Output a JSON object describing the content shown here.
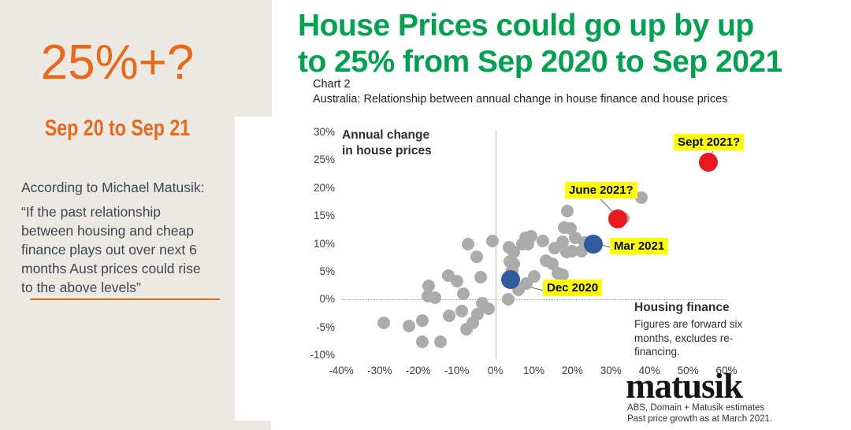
{
  "colors": {
    "accent_orange": "#E8691B",
    "title_green": "#00A24F",
    "panel_beige": "#ECE9E3",
    "highlight_yellow": "#FFFF00",
    "dot_gray": "#ABABAB",
    "dot_blue": "#2E5C9E",
    "dot_red": "#E8191D"
  },
  "left_panel": {
    "headline": "25%+?",
    "subheadline": "Sep 20 to Sep 21",
    "attribution": "According to Michael Matusik:",
    "quote_lines": [
      "“If the past relationship",
      "between housing and cheap",
      "finance plays out over next 6",
      "months Aust prices could rise",
      "to the above levels”"
    ]
  },
  "main": {
    "title_lines": [
      "House Prices could go up by up",
      "to 25% from Sep 2020 to Sep 2021"
    ]
  },
  "chart_data": {
    "type": "scatter",
    "title": "Chart 2",
    "subtitle": "Australia: Relationship between annual change in house finance and house prices",
    "ylabel_lines": [
      "Annual change",
      "in house prices"
    ],
    "xlabel": "Housing finance",
    "xlabel_note_lines": [
      "Figures are forward six",
      "months, excludes re-",
      "financing."
    ],
    "xlim": [
      -40,
      60
    ],
    "ylim": [
      -10,
      30
    ],
    "x_ticks": [
      {
        "v": -40,
        "label": "-40%"
      },
      {
        "v": -30,
        "label": "-30%"
      },
      {
        "v": -20,
        "label": "-20%"
      },
      {
        "v": -10,
        "label": "-10%"
      },
      {
        "v": 0,
        "label": "0%"
      },
      {
        "v": 10,
        "label": "10%"
      },
      {
        "v": 20,
        "label": "20%"
      },
      {
        "v": 30,
        "label": "30%"
      },
      {
        "v": 40,
        "label": "40%"
      },
      {
        "v": 50,
        "label": "50%"
      },
      {
        "v": 60,
        "label": "60%"
      }
    ],
    "y_ticks": [
      {
        "v": 30,
        "label": "30%"
      },
      {
        "v": 25,
        "label": "25%"
      },
      {
        "v": 20,
        "label": "20%"
      },
      {
        "v": 15,
        "label": "15%"
      },
      {
        "v": 10,
        "label": "10%"
      },
      {
        "v": 5,
        "label": "5%"
      },
      {
        "v": 0,
        "label": "0%"
      },
      {
        "v": -5,
        "label": "-5%"
      },
      {
        "v": -10,
        "label": "-10%"
      }
    ],
    "points": [
      [
        -29,
        -4.2
      ],
      [
        -22.5,
        -4.7
      ],
      [
        -19,
        -3.8
      ],
      [
        -19,
        -7.6
      ],
      [
        -14.3,
        -7.6
      ],
      [
        -17.2,
        2.5
      ],
      [
        -17.6,
        0.6
      ],
      [
        -15.6,
        0.3
      ],
      [
        -12.2,
        4.3
      ],
      [
        -9.9,
        3.3
      ],
      [
        -8.4,
        1
      ],
      [
        -11.9,
        -2.9
      ],
      [
        -8.7,
        -2.1
      ],
      [
        -7.5,
        -5.3
      ],
      [
        -5.9,
        -4.2
      ],
      [
        -4.6,
        -2.6
      ],
      [
        -3.3,
        -0.7
      ],
      [
        -1.8,
        -1.7
      ],
      [
        -3.9,
        4
      ],
      [
        -7,
        10
      ],
      [
        -4.9,
        7.7
      ],
      [
        -0.7,
        10.5
      ],
      [
        3.3,
        0
      ],
      [
        6,
        1.7
      ],
      [
        8,
        2.9
      ],
      [
        10.2,
        4.2
      ],
      [
        4.4,
        5.3
      ],
      [
        3.8,
        6.8
      ],
      [
        4.8,
        6.4
      ],
      [
        3.5,
        9.4
      ],
      [
        4.8,
        8.5
      ],
      [
        7,
        9.9
      ],
      [
        8.5,
        10
      ],
      [
        7.9,
        11
      ],
      [
        9.3,
        11.3
      ],
      [
        12.3,
        10.5
      ],
      [
        13.2,
        7
      ],
      [
        14.9,
        6.4
      ],
      [
        16.2,
        4.7
      ],
      [
        17.5,
        4.4
      ],
      [
        15.4,
        9.2
      ],
      [
        17.5,
        10.3
      ],
      [
        18.5,
        8.5
      ],
      [
        20,
        8.6
      ],
      [
        22.3,
        8.6
      ],
      [
        23.2,
        10.2
      ],
      [
        17.8,
        12.9
      ],
      [
        18.7,
        15.8
      ],
      [
        19.5,
        12.7
      ],
      [
        20.8,
        11.1
      ],
      [
        33.2,
        14.6
      ],
      [
        37.9,
        18.3
      ]
    ],
    "highlights": [
      {
        "id": "dec2020",
        "label": "Dec 2020",
        "x": 4.0,
        "y": 3.5,
        "color": "#2E5C9E"
      },
      {
        "id": "mar2021",
        "label": "Mar 2021",
        "x": 25.5,
        "y": 10.0,
        "color": "#2E5C9E"
      },
      {
        "id": "june2021",
        "label": "June 2021?",
        "x": 31.8,
        "y": 14.4,
        "color": "#E8191D"
      },
      {
        "id": "sept2021",
        "label": "Sept 2021?",
        "x": 55.3,
        "y": 24.6,
        "color": "#E8191D"
      }
    ]
  },
  "footer": {
    "logo": "matusik",
    "credit_lines": [
      "ABS, Domain + Matusik estimates",
      "Past price growth as at March 2021."
    ]
  }
}
